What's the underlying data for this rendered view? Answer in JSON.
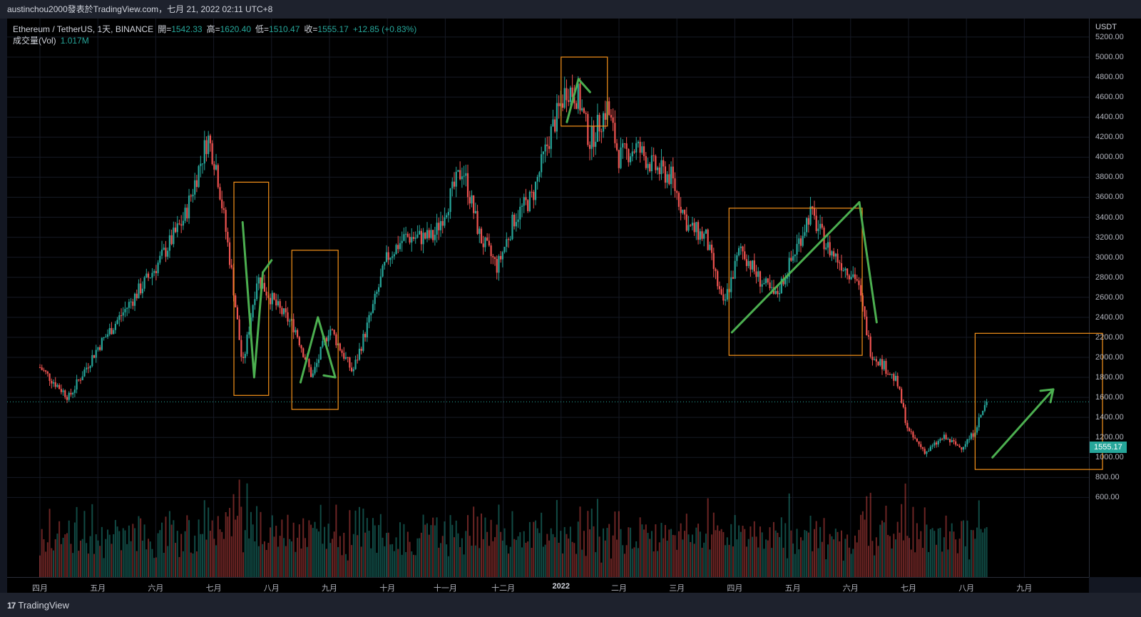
{
  "header": {
    "text": "austinchou2000發表於TradingView.com，七月 21, 2022 02:11 UTC+8"
  },
  "legend": {
    "title": "Ethereum / TetherUS, 1天, BINANCE",
    "open_label": "開=",
    "open": "1542.33",
    "high_label": "高=",
    "high": "1620.40",
    "low_label": "低=",
    "low": "1510.47",
    "close_label": "收=",
    "close": "1555.17",
    "change": "+12.85 (+0.83%)",
    "volume_label": "成交量(Vol)",
    "volume": "1.017M"
  },
  "price_axis": {
    "unit": "USDT",
    "ticks": [
      "5200.00",
      "5000.00",
      "4800.00",
      "4600.00",
      "4400.00",
      "4200.00",
      "4000.00",
      "3800.00",
      "3600.00",
      "3400.00",
      "3200.00",
      "3000.00",
      "2800.00",
      "2600.00",
      "2400.00",
      "2200.00",
      "2000.00",
      "1800.00",
      "1600.00",
      "1400.00",
      "1200.00",
      "1000.00",
      "800.00",
      "600.00"
    ],
    "last_price": "1555.17"
  },
  "time_axis": {
    "months": [
      "四月",
      "五月",
      "六月",
      "七月",
      "八月",
      "九月",
      "十月",
      "十一月",
      "十二月",
      "2022",
      "二月",
      "三月",
      "四月",
      "五月",
      "六月",
      "七月",
      "八月",
      "九月"
    ]
  },
  "footer": {
    "brand": "TradingView",
    "logo_glyph": "17"
  },
  "colors": {
    "up": "#26a69a",
    "down": "#ef5350",
    "annotation_box": "#f7931a",
    "annotation_arrow": "#4caf50",
    "price_line": "#26a69a"
  },
  "chart_data": {
    "type": "candlestick",
    "symbol": "Ethereum / TetherUS",
    "interval": "1天",
    "exchange": "BINANCE",
    "ylim": [
      500,
      5250
    ],
    "last_price": 1555.17,
    "price_path": {
      "months": [
        "三月",
        "四月",
        "五月",
        "六月",
        "七月",
        "八月",
        "九月",
        "十月",
        "十一月",
        "十二月",
        "2022",
        "二月",
        "三月",
        "四月",
        "五月",
        "六月",
        "七月"
      ],
      "points": [
        {
          "t": 0.0,
          "p": 1900
        },
        {
          "t": 0.5,
          "p": 1600
        },
        {
          "t": 1.0,
          "p": 2100
        },
        {
          "t": 1.5,
          "p": 2500
        },
        {
          "t": 2.0,
          "p": 2900
        },
        {
          "t": 2.5,
          "p": 3400
        },
        {
          "t": 2.9,
          "p": 4200
        },
        {
          "t": 3.05,
          "p": 3900
        },
        {
          "t": 3.3,
          "p": 2900
        },
        {
          "t": 3.5,
          "p": 1900
        },
        {
          "t": 3.75,
          "p": 2800
        },
        {
          "t": 4.1,
          "p": 2500
        },
        {
          "t": 4.4,
          "p": 2300
        },
        {
          "t": 4.7,
          "p": 1800
        },
        {
          "t": 5.0,
          "p": 2300
        },
        {
          "t": 5.4,
          "p": 1850
        },
        {
          "t": 5.7,
          "p": 2400
        },
        {
          "t": 6.0,
          "p": 3000
        },
        {
          "t": 6.3,
          "p": 3200
        },
        {
          "t": 6.8,
          "p": 3200
        },
        {
          "t": 7.3,
          "p": 3900
        },
        {
          "t": 7.6,
          "p": 3200
        },
        {
          "t": 7.9,
          "p": 2900
        },
        {
          "t": 8.2,
          "p": 3400
        },
        {
          "t": 8.5,
          "p": 3600
        },
        {
          "t": 8.8,
          "p": 4200
        },
        {
          "t": 9.1,
          "p": 4700
        },
        {
          "t": 9.3,
          "p": 4600
        },
        {
          "t": 9.5,
          "p": 4150
        },
        {
          "t": 9.8,
          "p": 4500
        },
        {
          "t": 10.0,
          "p": 4000
        },
        {
          "t": 10.3,
          "p": 4100
        },
        {
          "t": 10.6,
          "p": 3900
        },
        {
          "t": 10.9,
          "p": 3800
        },
        {
          "t": 11.2,
          "p": 3300
        },
        {
          "t": 11.5,
          "p": 3200
        },
        {
          "t": 11.8,
          "p": 2500
        },
        {
          "t": 12.1,
          "p": 3100
        },
        {
          "t": 12.4,
          "p": 2800
        },
        {
          "t": 12.7,
          "p": 2600
        },
        {
          "t": 13.0,
          "p": 3000
        },
        {
          "t": 13.3,
          "p": 3450
        },
        {
          "t": 13.6,
          "p": 3100
        },
        {
          "t": 13.9,
          "p": 2900
        },
        {
          "t": 14.1,
          "p": 2800
        },
        {
          "t": 14.35,
          "p": 2050
        },
        {
          "t": 14.6,
          "p": 1900
        },
        {
          "t": 14.8,
          "p": 1750
        },
        {
          "t": 15.0,
          "p": 1250
        },
        {
          "t": 15.3,
          "p": 1050
        },
        {
          "t": 15.6,
          "p": 1200
        },
        {
          "t": 15.9,
          "p": 1100
        },
        {
          "t": 16.1,
          "p": 1220
        },
        {
          "t": 16.35,
          "p": 1555
        }
      ]
    },
    "annotations": {
      "boxes": [
        {
          "from": 3.35,
          "to": 3.95,
          "low": 1620,
          "high": 3750
        },
        {
          "from": 4.35,
          "to": 5.15,
          "low": 1480,
          "high": 3070
        },
        {
          "from": 9.0,
          "to": 9.8,
          "low": 4310,
          "high": 5000
        },
        {
          "from": 11.9,
          "to": 14.2,
          "low": 2020,
          "high": 3490
        },
        {
          "from": 16.15,
          "to": 18.35,
          "low": 880,
          "high": 2240
        }
      ],
      "arrows": [
        {
          "path": [
            [
              3.5,
              3350
            ],
            [
              3.7,
              1800
            ],
            [
              3.85,
              2850
            ]
          ],
          "head": [
            4.0,
            2970
          ]
        },
        {
          "path": [
            [
              4.5,
              1750
            ],
            [
              4.8,
              2400
            ],
            [
              5.1,
              1800
            ]
          ],
          "head": [
            4.9,
            1820
          ]
        },
        {
          "path": [
            [
              9.1,
              4350
            ],
            [
              9.3,
              4780
            ]
          ],
          "head": [
            9.5,
            4650
          ]
        },
        {
          "path": [
            [
              11.95,
              2250
            ],
            [
              14.15,
              3550
            ]
          ],
          "head": [
            14.45,
            2350
          ]
        },
        {
          "path": [
            [
              16.45,
              1000
            ],
            [
              17.5,
              1680
            ]
          ],
          "head": [
            17.5,
            1680
          ]
        }
      ]
    },
    "volume_series_note": "daily volume bars shown beneath candles"
  }
}
